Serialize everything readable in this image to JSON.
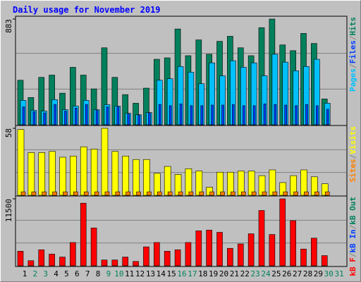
{
  "title": "Daily usage for November 2019",
  "separator": "/",
  "categories": [
    "1",
    "2",
    "3",
    "4",
    "5",
    "6",
    "7",
    "8",
    "9",
    "10",
    "11",
    "12",
    "13",
    "14",
    "15",
    "16",
    "17",
    "18",
    "19",
    "20",
    "21",
    "22",
    "23",
    "24",
    "25",
    "26",
    "27",
    "28",
    "29",
    "30",
    "31"
  ],
  "category_colors": [
    "#000000",
    "#00805c",
    "#00805c",
    "#000000",
    "#000000",
    "#000000",
    "#000000",
    "#000000",
    "#00805c",
    "#00805c",
    "#000000",
    "#000000",
    "#000000",
    "#000000",
    "#000000",
    "#00805c",
    "#00805c",
    "#000000",
    "#000000",
    "#000000",
    "#000000",
    "#000000",
    "#00805c",
    "#00805c",
    "#000000",
    "#000000",
    "#000000",
    "#000000",
    "#000000",
    "#00805c",
    "#00805c"
  ],
  "chart_data": [
    {
      "type": "bar",
      "ylim": [
        0,
        883
      ],
      "yticks": [
        883
      ],
      "series": [
        {
          "name": "Pages",
          "color": "#00c0ff",
          "values": [
            204,
            120,
            114,
            210,
            126,
            156,
            204,
            126,
            168,
            156,
            96,
            84,
            102,
            372,
            385,
            487,
            439,
            343,
            517,
            409,
            535,
            481,
            517,
            409,
            589,
            523,
            451,
            487,
            547,
            180,
            null
          ]
        },
        {
          "name": "Files",
          "color": "#0040ff",
          "values": [
            150,
            110,
            100,
            170,
            115,
            140,
            170,
            120,
            150,
            150,
            90,
            80,
            100,
            170,
            160,
            175,
            160,
            160,
            165,
            165,
            170,
            160,
            160,
            175,
            170,
            165,
            160,
            170,
            160,
            130,
            null
          ]
        },
        {
          "name": "Hits",
          "color": "#00805c",
          "values": [
            372,
            228,
            396,
            415,
            264,
            480,
            415,
            300,
            643,
            396,
            252,
            180,
            306,
            547,
            559,
            800,
            577,
            709,
            589,
            697,
            739,
            643,
            577,
            811,
            883,
            667,
            619,
            763,
            679,
            216,
            null
          ]
        }
      ]
    },
    {
      "type": "bar",
      "ylim": [
        0,
        58
      ],
      "yticks": [
        58
      ],
      "series": [
        {
          "name": "Sites",
          "color": "#ff8000",
          "values": [
            3,
            3,
            3,
            3,
            3,
            3,
            3,
            3,
            3,
            3,
            3,
            3,
            3,
            3,
            3,
            3,
            3,
            3,
            3,
            3,
            3,
            3,
            3,
            3,
            3,
            3,
            3,
            3,
            3,
            3,
            null
          ]
        },
        {
          "name": "Visits",
          "color": "#ffff00",
          "values": [
            57,
            37,
            37,
            38,
            33,
            34,
            42,
            40,
            58,
            38,
            34,
            31,
            31,
            19,
            25,
            18,
            23,
            21,
            7,
            20,
            20,
            21,
            21,
            17,
            22,
            11,
            17,
            22,
            16,
            10,
            null
          ]
        }
      ]
    },
    {
      "type": "bar",
      "ylim": [
        0,
        11500
      ],
      "yticks": [
        11500
      ],
      "series": [
        {
          "name": "kB F",
          "color": "#ff0000",
          "values": [
            2500,
            875,
            2750,
            2000,
            1500,
            4000,
            10750,
            6500,
            1000,
            1000,
            1500,
            750,
            3250,
            4000,
            2500,
            2750,
            4000,
            6000,
            6125,
            5750,
            3000,
            3750,
            5500,
            9500,
            5375,
            11500,
            7750,
            2875,
            4750,
            1750,
            null
          ]
        },
        {
          "name": "kB In",
          "color": "#0040ff",
          "values": [
            0,
            0,
            0,
            0,
            0,
            0,
            0,
            0,
            0,
            0,
            0,
            0,
            0,
            0,
            0,
            0,
            0,
            0,
            0,
            0,
            0,
            0,
            0,
            0,
            0,
            0,
            0,
            0,
            0,
            0,
            null
          ]
        },
        {
          "name": "kB Out",
          "color": "#00805c",
          "values": [
            0,
            0,
            0,
            0,
            0,
            0,
            0,
            0,
            0,
            0,
            0,
            0,
            0,
            0,
            0,
            0,
            0,
            0,
            0,
            0,
            0,
            0,
            0,
            0,
            0,
            0,
            0,
            0,
            0,
            0,
            null
          ]
        }
      ]
    }
  ]
}
